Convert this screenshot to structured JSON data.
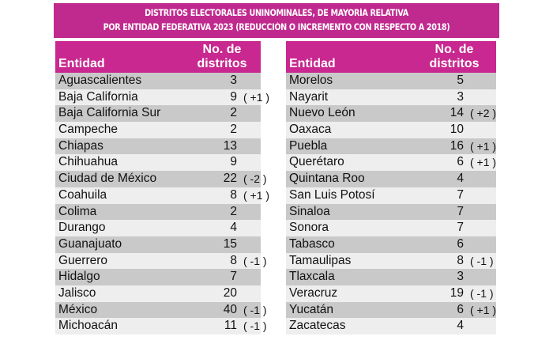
{
  "title": {
    "line1": "DISTRITOS ELECTORALES UNINOMINALES, DE MAYORÍA RELATIVA",
    "line2": "POR ENTIDAD FEDERATIVA 2023 (REDUCCIÓN O INCREMENTO CON RESPECTO A 2018)"
  },
  "headers": {
    "entity": "Entidad",
    "districts_line1": "No. de",
    "districts_line2": "distritos"
  },
  "colors": {
    "magenta": "#c8288f",
    "row_dark": "#c9c9c9",
    "row_light": "#eeeeee"
  },
  "left": [
    {
      "name": "Aguascalientes",
      "num": "3",
      "chg": ""
    },
    {
      "name": "Baja California",
      "num": "9",
      "chg": "( +1 )"
    },
    {
      "name": "Baja California Sur",
      "num": "2",
      "chg": ""
    },
    {
      "name": "Campeche",
      "num": "2",
      "chg": ""
    },
    {
      "name": "Chiapas",
      "num": "13",
      "chg": ""
    },
    {
      "name": "Chihuahua",
      "num": "9",
      "chg": ""
    },
    {
      "name": "Ciudad de México",
      "num": "22",
      "chg": "( -2 )"
    },
    {
      "name": "Coahuila",
      "num": "8",
      "chg": "( +1 )"
    },
    {
      "name": "Colima",
      "num": "2",
      "chg": ""
    },
    {
      "name": "Durango",
      "num": "4",
      "chg": ""
    },
    {
      "name": "Guanajuato",
      "num": "15",
      "chg": ""
    },
    {
      "name": "Guerrero",
      "num": "8",
      "chg": "( -1 )"
    },
    {
      "name": "Hidalgo",
      "num": "7",
      "chg": ""
    },
    {
      "name": "Jalisco",
      "num": "20",
      "chg": ""
    },
    {
      "name": "México",
      "num": "40",
      "chg": "( -1 )"
    },
    {
      "name": "Michoacán",
      "num": "11",
      "chg": "( -1 )"
    }
  ],
  "right": [
    {
      "name": "Morelos",
      "num": "5",
      "chg": ""
    },
    {
      "name": "Nayarit",
      "num": "3",
      "chg": ""
    },
    {
      "name": "Nuevo León",
      "num": "14",
      "chg": "( +2 )"
    },
    {
      "name": "Oaxaca",
      "num": "10",
      "chg": ""
    },
    {
      "name": "Puebla",
      "num": "16",
      "chg": "( +1 )"
    },
    {
      "name": "Querétaro",
      "num": "6",
      "chg": "( +1 )"
    },
    {
      "name": "Quintana Roo",
      "num": "4",
      "chg": ""
    },
    {
      "name": "San Luis Potosí",
      "num": "7",
      "chg": ""
    },
    {
      "name": "Sinaloa",
      "num": "7",
      "chg": ""
    },
    {
      "name": "Sonora",
      "num": "7",
      "chg": ""
    },
    {
      "name": "Tabasco",
      "num": "6",
      "chg": ""
    },
    {
      "name": "Tamaulipas",
      "num": "8",
      "chg": "( -1 )"
    },
    {
      "name": "Tlaxcala",
      "num": "3",
      "chg": ""
    },
    {
      "name": "Veracruz",
      "num": "19",
      "chg": "( -1 )"
    },
    {
      "name": "Yucatán",
      "num": "6",
      "chg": "( +1 )"
    },
    {
      "name": "Zacatecas",
      "num": "4",
      "chg": ""
    }
  ]
}
